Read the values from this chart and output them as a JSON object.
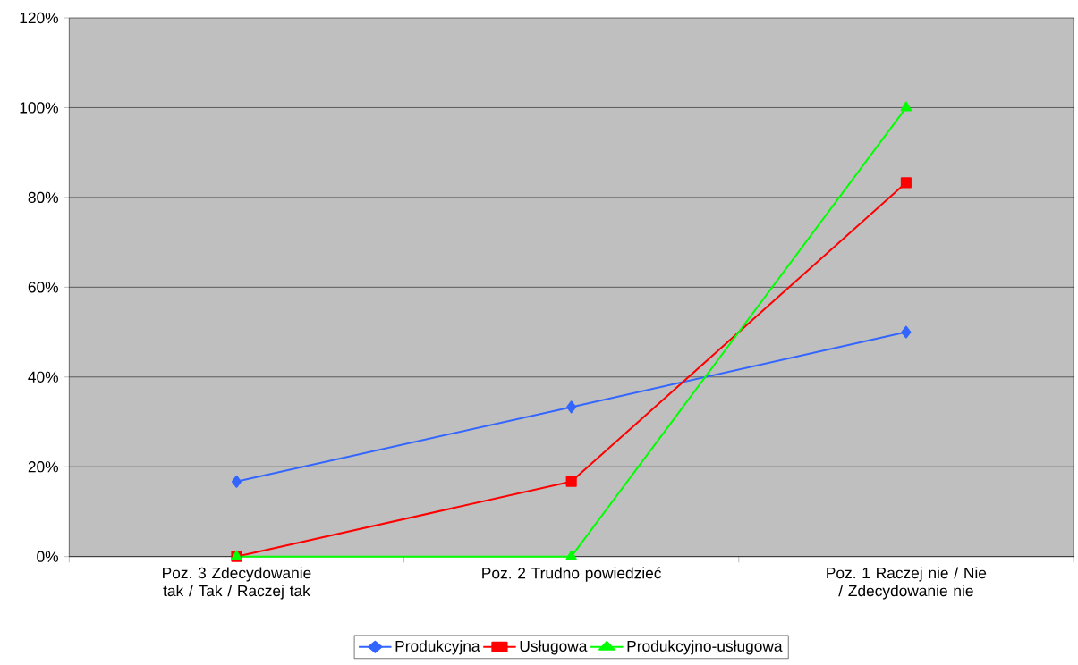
{
  "chart_data": {
    "type": "line",
    "categories": [
      "Poz. 3 Zdecydowanie tak / Tak / Raczej tak",
      "Poz. 2 Trudno powiedzieć",
      "Poz. 1 Raczej nie / Nie / Zdecydowanie nie"
    ],
    "series": [
      {
        "name": "Produkcyjna",
        "color": "#3366ff",
        "marker": "diamond",
        "values": [
          16.7,
          33.3,
          50
        ]
      },
      {
        "name": "Usługowa",
        "color": "#ff0000",
        "marker": "square",
        "values": [
          0,
          16.7,
          83.3
        ]
      },
      {
        "name": "Produkcyjno-usługowa",
        "color": "#00ff00",
        "marker": "triangle",
        "values": [
          0,
          0,
          100
        ]
      }
    ],
    "ylim": [
      0,
      120
    ],
    "yticks": [
      {
        "value": 0,
        "label": "0%"
      },
      {
        "value": 20,
        "label": "20%"
      },
      {
        "value": 40,
        "label": "40%"
      },
      {
        "value": 60,
        "label": "60%"
      },
      {
        "value": 80,
        "label": "80%"
      },
      {
        "value": 100,
        "label": "100%"
      },
      {
        "value": 120,
        "label": "120%"
      }
    ],
    "grid": "y",
    "legend": "bottom",
    "line_style": "solid"
  }
}
